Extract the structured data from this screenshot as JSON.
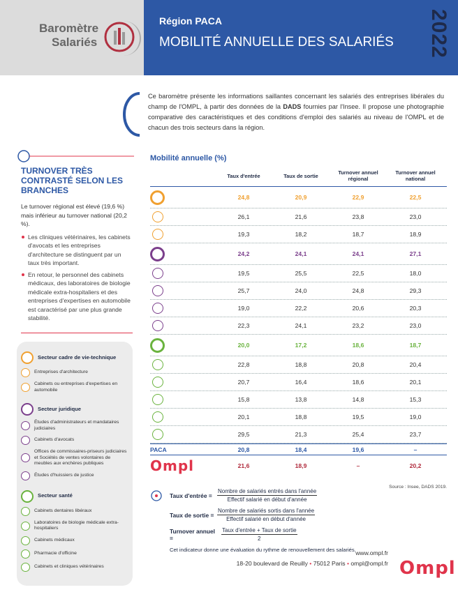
{
  "header": {
    "logo_line1": "Baromètre",
    "logo_line2": "Salariés",
    "region": "Région PACA",
    "title": "MOBILITÉ ANNUELLE DES SALARIÉS",
    "year": "2022"
  },
  "intro": {
    "before": "Ce baromètre présente les informations saillantes concernant les salariés des entreprises libérales du champ de l'OMPL, à partir des données de la ",
    "bold": "DADS",
    "after": " fournies par l'Insee. Il propose une photographie comparative des caractéristiques et des conditions d'emploi des salariés au niveau de l'OMPL et de chacun des trois secteurs dans la région."
  },
  "sidebar": {
    "title": "TURNOVER TRÈS CONTRASTÉ SELON LES BRANCHES",
    "paragraph": "Le turnover régional est élevé (19,6 %) mais inférieur au turnover national (20,2 %).",
    "bullets": [
      "Les cliniques vétérinaires, les cabinets d'avocats et les entreprises d'architecture se distinguent par un taux très important.",
      "En retour, le personnel des cabinets médicaux, des laboratoires de biologie médicale extra-hospitaliers et des entreprises d'expertises en automobile est caractérisé par une plus grande stabilité."
    ]
  },
  "legend": [
    {
      "title": "Secteur cadre de vie-technique",
      "color": "#f0a030",
      "items": [
        "Entreprises d'architecture",
        "Cabinets ou entreprises d'expertises en automobile"
      ]
    },
    {
      "title": "Secteur juridique",
      "color": "#7b3f8c",
      "items": [
        "Études d'administrateurs et mandataires judiciaires",
        "Cabinets d'avocats",
        "Offices de commissaires-priseurs judiciaires et Sociétés de ventes volontaires de meubles aux enchères publiques",
        "Études d'huissiers de justice"
      ]
    },
    {
      "title": "Secteur santé",
      "color": "#6ab33e",
      "items": [
        "Cabinets dentaires libéraux",
        "Laboratoires de biologie médicale extra-hospitaliers",
        "Cabinets médicaux",
        "Pharmacie d'officine",
        "Cabinets et cliniques vétérinaires"
      ]
    }
  ],
  "table": {
    "title": "Mobilité annuelle (%)",
    "headers": [
      "Taux d'entrée",
      "Taux de sortie",
      "Turnover annuel régional",
      "Turnover annuel national"
    ],
    "rows": [
      {
        "kind": "sector",
        "color": "#f0a030",
        "values": [
          "24,8",
          "20,9",
          "22,9",
          "22,5"
        ]
      },
      {
        "kind": "sub",
        "color": "#f0a030",
        "values": [
          "26,1",
          "21,6",
          "23,8",
          "23,0"
        ]
      },
      {
        "kind": "sub",
        "color": "#f0a030",
        "values": [
          "19,3",
          "18,2",
          "18,7",
          "18,9"
        ]
      },
      {
        "kind": "sector",
        "color": "#7b3f8c",
        "values": [
          "24,2",
          "24,1",
          "24,1",
          "27,1"
        ]
      },
      {
        "kind": "sub",
        "color": "#7b3f8c",
        "values": [
          "19,5",
          "25,5",
          "22,5",
          "18,0"
        ]
      },
      {
        "kind": "sub",
        "color": "#7b3f8c",
        "values": [
          "25,7",
          "24,0",
          "24,8",
          "29,3"
        ]
      },
      {
        "kind": "sub",
        "color": "#7b3f8c",
        "values": [
          "19,0",
          "22,2",
          "20,6",
          "20,3"
        ]
      },
      {
        "kind": "sub",
        "color": "#7b3f8c",
        "values": [
          "22,3",
          "24,1",
          "23,2",
          "23,0"
        ]
      },
      {
        "kind": "sector",
        "color": "#6ab33e",
        "values": [
          "20,0",
          "17,2",
          "18,6",
          "18,7"
        ]
      },
      {
        "kind": "sub",
        "color": "#6ab33e",
        "values": [
          "22,8",
          "18,8",
          "20,8",
          "20,4"
        ]
      },
      {
        "kind": "sub",
        "color": "#6ab33e",
        "values": [
          "20,7",
          "16,4",
          "18,6",
          "20,1"
        ]
      },
      {
        "kind": "sub",
        "color": "#6ab33e",
        "values": [
          "15,8",
          "13,8",
          "14,8",
          "15,3"
        ]
      },
      {
        "kind": "sub",
        "color": "#6ab33e",
        "values": [
          "20,1",
          "18,8",
          "19,5",
          "19,0"
        ]
      },
      {
        "kind": "sub",
        "color": "#6ab33e",
        "values": [
          "29,5",
          "21,3",
          "25,4",
          "23,7"
        ]
      },
      {
        "kind": "paca",
        "label": "PACA",
        "values": [
          "20,8",
          "18,4",
          "19,6",
          "–"
        ]
      },
      {
        "kind": "ompl",
        "label": "Ompl",
        "values": [
          "21,6",
          "18,9",
          "–",
          "20,2"
        ]
      }
    ],
    "source": "Source : Insee, DADS 2019."
  },
  "formulas": {
    "items": [
      {
        "label": "Taux d'entrée =",
        "numerator": "Nombre de salariés entrés dans l'année",
        "denominator": "Effectif salarié en début d'année"
      },
      {
        "label": "Taux de sortie =",
        "numerator": "Nombre de salariés sortis dans l'année",
        "denominator": "Effectif salarié en début d'année"
      },
      {
        "label": "Turnover annuel =",
        "numerator": "Taux d'entrée + Taux de sortie",
        "denominator": "2"
      }
    ],
    "note": "Cet indicateur donne une évaluation du rythme de renouvellement des salariés."
  },
  "footer": {
    "website": "www.ompl.fr",
    "address": "18-20 boulevard de Reuilly",
    "city": "75012 Paris",
    "email": "ompl@ompl.fr",
    "logo": "Ompl"
  }
}
